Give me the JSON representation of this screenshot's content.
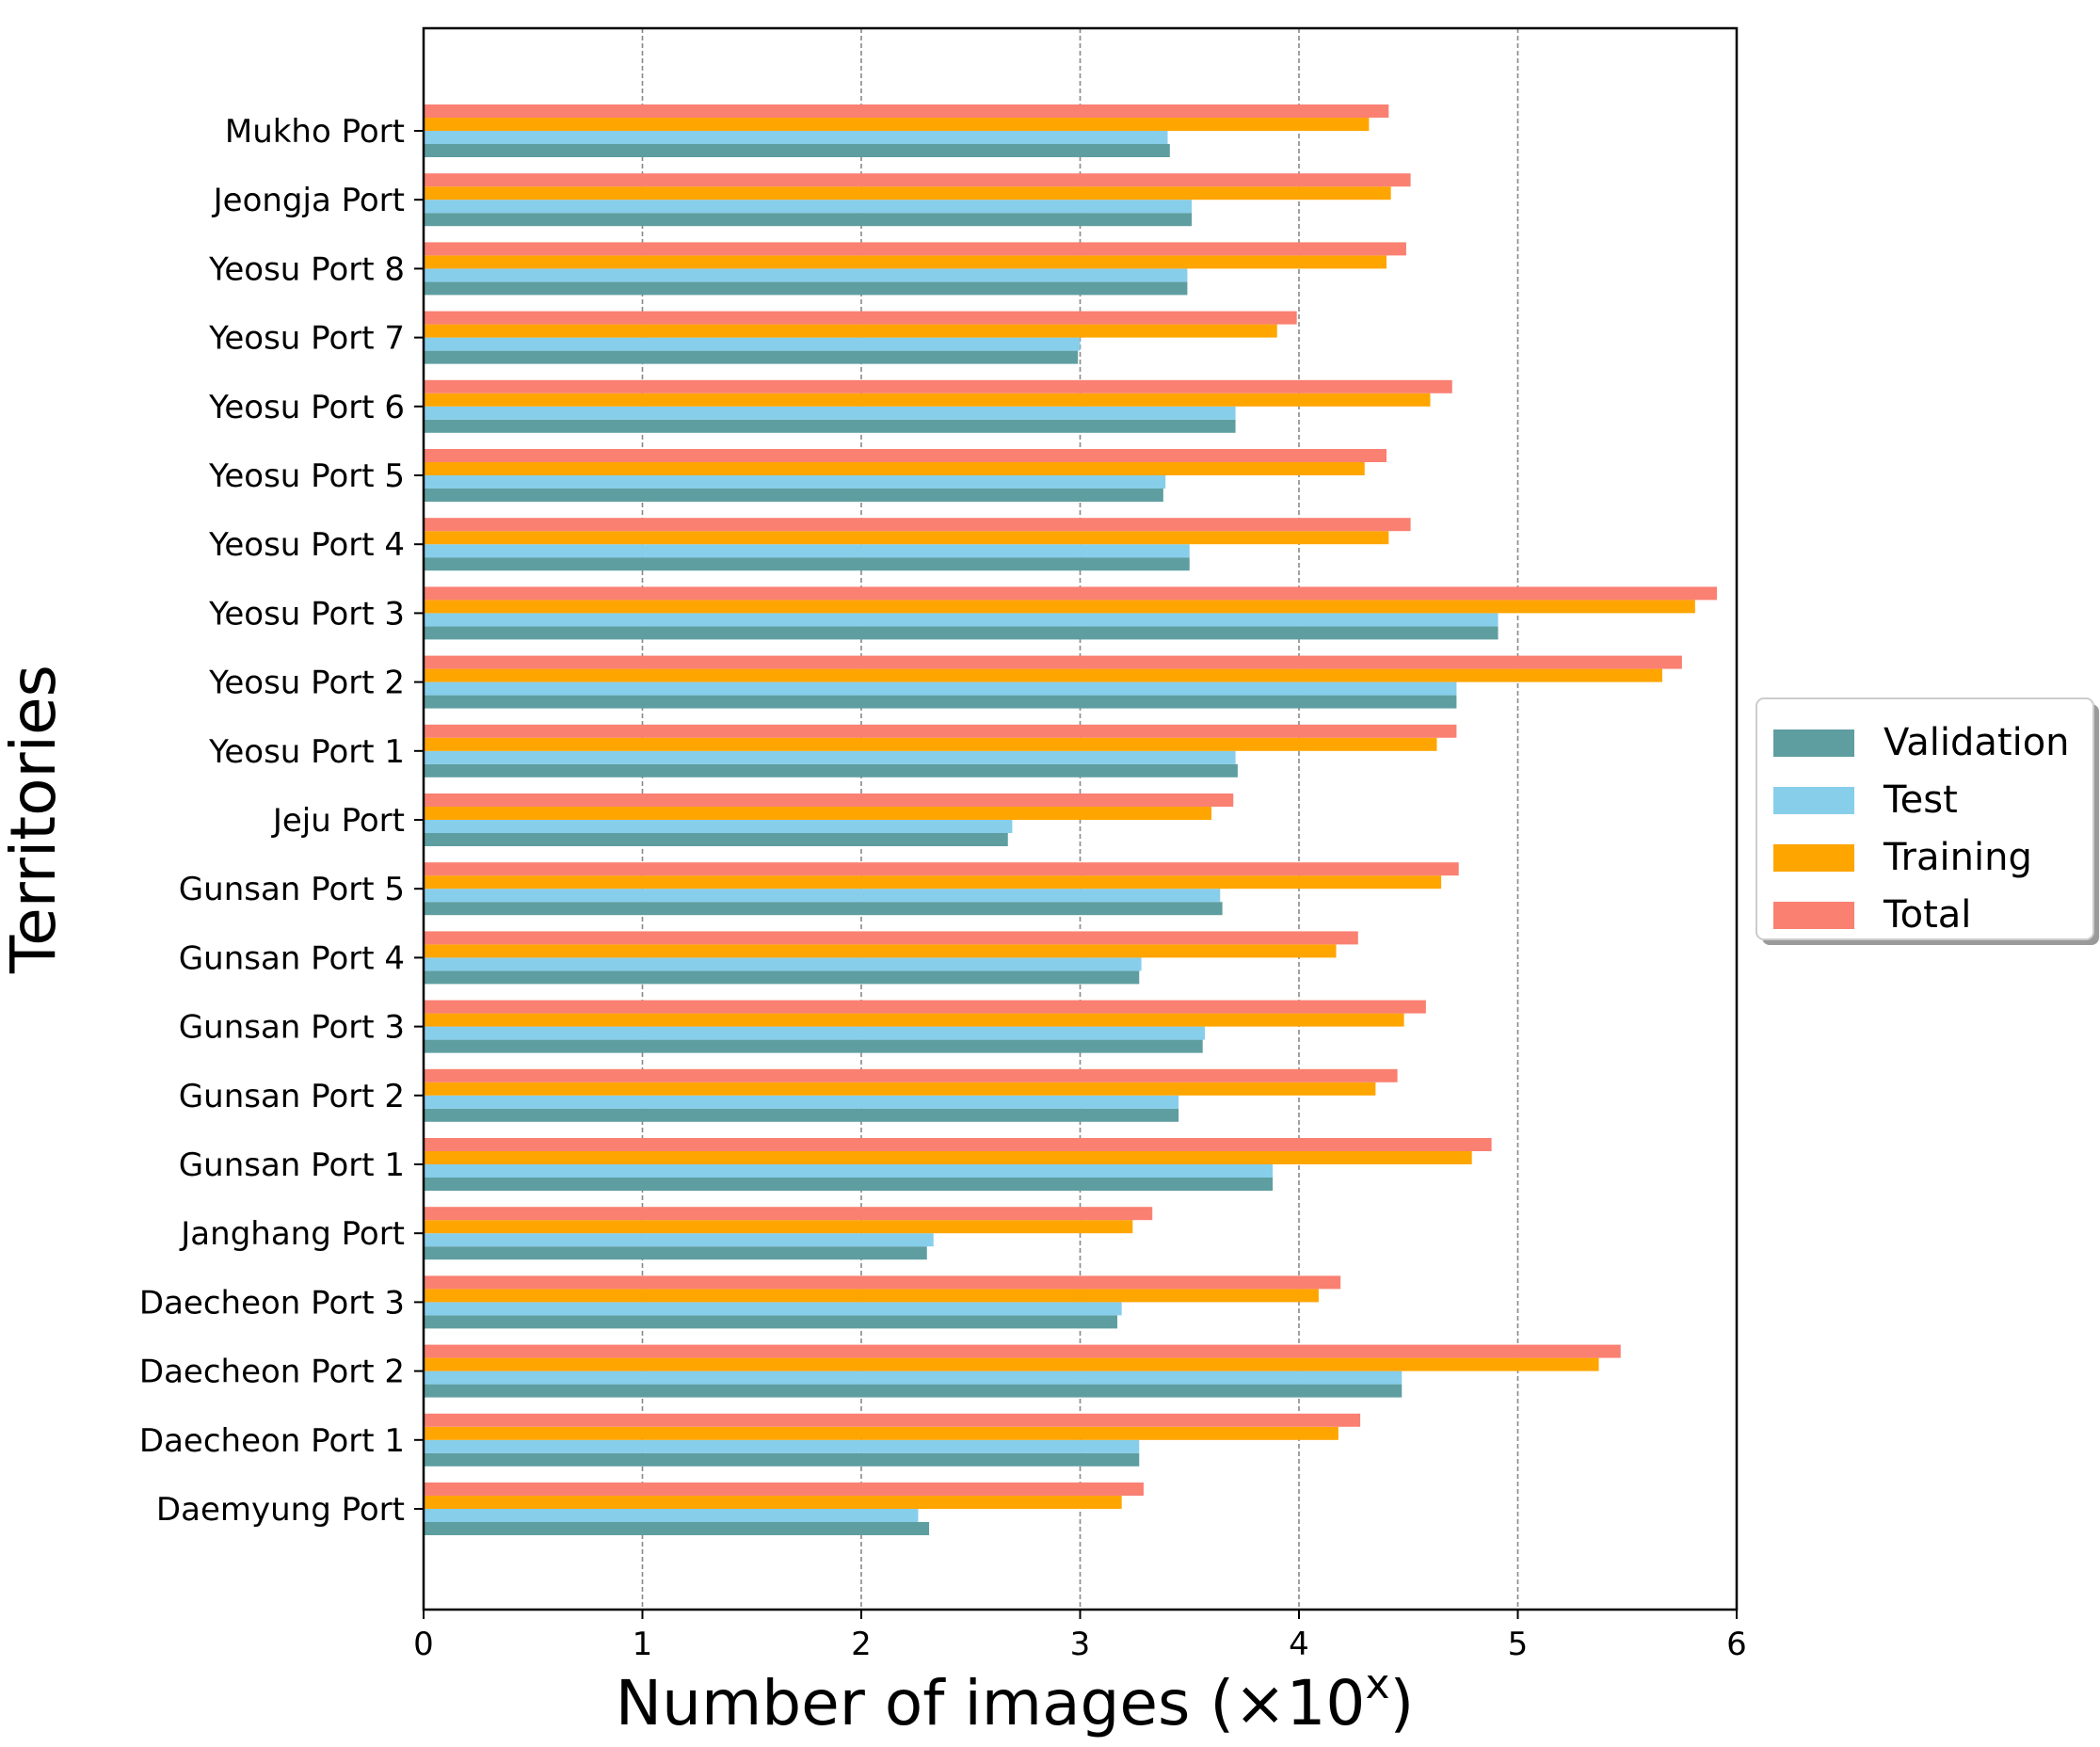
{
  "chart_data": {
    "type": "bar",
    "orientation": "horizontal",
    "title": "",
    "xlabel": "Number of images (×10",
    "xlabel_sup": "x",
    "xlabel_close": ")",
    "ylabel": "Territories",
    "xlim": [
      0,
      6
    ],
    "xticks": [
      "0",
      "1",
      "2",
      "3",
      "4",
      "5",
      "6"
    ],
    "grid": "vertical dashed",
    "legend_position": "right",
    "categories": [
      "Daemyung Port",
      "Daecheon Port 1",
      "Daecheon Port 2",
      "Daecheon Port 3",
      "Janghang Port",
      "Gunsan Port 1",
      "Gunsan Port 2",
      "Gunsan Port 3",
      "Gunsan Port 4",
      "Gunsan Port 5",
      "Jeju Port",
      "Yeosu Port 1",
      "Yeosu Port 2",
      "Yeosu Port 3",
      "Yeosu Port 4",
      "Yeosu Port 5",
      "Yeosu Port 6",
      "Yeosu Port 7",
      "Yeosu Port 8",
      "Jeongja Port",
      "Mukho Port"
    ],
    "series": [
      {
        "name": "Validation",
        "color": "#5f9ea0",
        "values": [
          2.31,
          3.27,
          4.47,
          3.17,
          2.3,
          3.88,
          3.45,
          3.56,
          3.27,
          3.65,
          2.67,
          3.72,
          4.72,
          4.91,
          3.5,
          3.38,
          3.71,
          2.99,
          3.49,
          3.51,
          3.41
        ]
      },
      {
        "name": "Test",
        "color": "#87ceeb",
        "values": [
          2.26,
          3.27,
          4.47,
          3.19,
          2.33,
          3.88,
          3.45,
          3.57,
          3.28,
          3.64,
          2.69,
          3.71,
          4.72,
          4.91,
          3.5,
          3.39,
          3.71,
          3.0,
          3.49,
          3.51,
          3.4
        ]
      },
      {
        "name": "Training",
        "color": "#ffa500",
        "values": [
          3.19,
          4.18,
          5.37,
          4.09,
          3.24,
          4.79,
          4.35,
          4.48,
          4.17,
          4.65,
          3.6,
          4.63,
          5.66,
          5.81,
          4.41,
          4.3,
          4.6,
          3.9,
          4.4,
          4.42,
          4.32
        ]
      },
      {
        "name": "Total",
        "color": "#fa8072",
        "values": [
          3.29,
          4.28,
          5.47,
          4.19,
          3.33,
          4.88,
          4.45,
          4.58,
          4.27,
          4.73,
          3.7,
          4.72,
          5.75,
          5.91,
          4.51,
          4.4,
          4.7,
          3.99,
          4.49,
          4.51,
          4.41
        ]
      }
    ]
  }
}
